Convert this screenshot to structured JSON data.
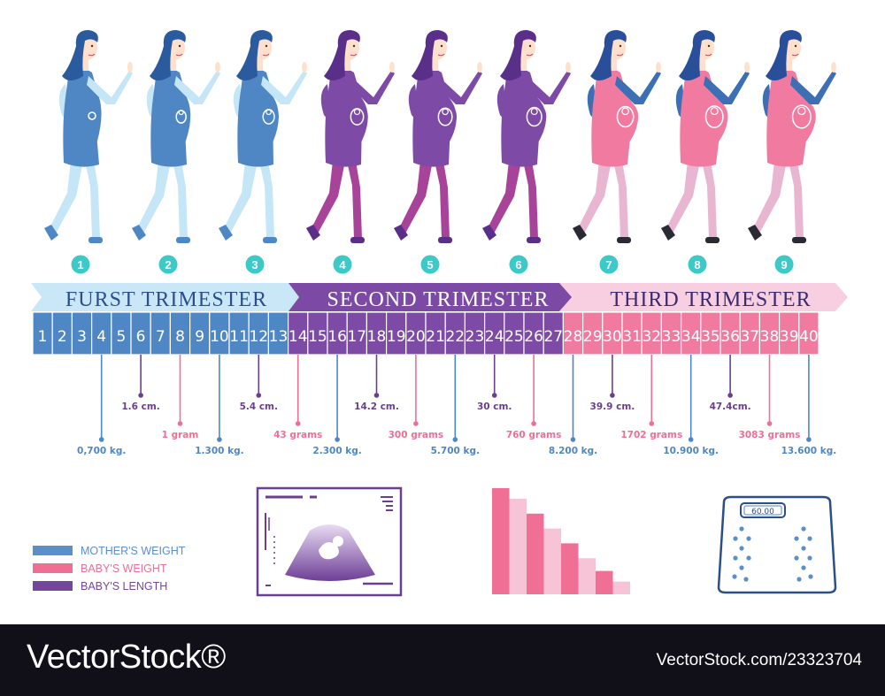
{
  "trimesters": [
    {
      "label": "FURST TRIMESTER",
      "color": "#5b86c4"
    },
    {
      "label": "SECOND TRIMESTER",
      "color": "#73489e"
    },
    {
      "label": "THIRD TRIMESTER",
      "color": "#ee6e94"
    }
  ],
  "month_badges": [
    "1",
    "2",
    "3",
    "4",
    "5",
    "6",
    "7",
    "8",
    "9"
  ],
  "weeks": [
    "1",
    "2",
    "3",
    "4",
    "5",
    "6",
    "7",
    "8",
    "9",
    "10",
    "11",
    "12",
    "13",
    "14",
    "15",
    "16",
    "17",
    "18",
    "19",
    "20",
    "21",
    "22",
    "23",
    "24",
    "25",
    "26",
    "27",
    "28",
    "29",
    "30",
    "31",
    "32",
    "33",
    "34",
    "35",
    "36",
    "37",
    "38",
    "39",
    "40"
  ],
  "markers": [
    {
      "week": 4,
      "type": "mother",
      "label": "0,700 kg."
    },
    {
      "week": 6,
      "type": "length",
      "label": "1.6 cm."
    },
    {
      "week": 8,
      "type": "baby",
      "label": "1 gram"
    },
    {
      "week": 10,
      "type": "mother",
      "label": "1.300 kg."
    },
    {
      "week": 12,
      "type": "length",
      "label": "5.4 cm."
    },
    {
      "week": 14,
      "type": "baby",
      "label": "43 grams"
    },
    {
      "week": 16,
      "type": "mother",
      "label": "2.300 kg."
    },
    {
      "week": 18,
      "type": "length",
      "label": "14.2 cm."
    },
    {
      "week": 20,
      "type": "baby",
      "label": "300 grams"
    },
    {
      "week": 22,
      "type": "mother",
      "label": "5.700 kg."
    },
    {
      "week": 24,
      "type": "length",
      "label": "30 cm."
    },
    {
      "week": 26,
      "type": "baby",
      "label": "760 grams"
    },
    {
      "week": 28,
      "type": "mother",
      "label": "8.200 kg."
    },
    {
      "week": 30,
      "type": "length",
      "label": "39.9 cm."
    },
    {
      "week": 32,
      "type": "baby",
      "label": "1702 grams"
    },
    {
      "week": 34,
      "type": "mother",
      "label": "10.900 kg."
    },
    {
      "week": 36,
      "type": "length",
      "label": "47.4cm."
    },
    {
      "week": 38,
      "type": "baby",
      "label": "3083 grams"
    },
    {
      "week": 40,
      "type": "mother",
      "label": "13.600 kg."
    }
  ],
  "legend": [
    {
      "key": "mother",
      "label": "MOTHER'S WEIGHT",
      "color": "#5b8fc9"
    },
    {
      "key": "baby",
      "label": "BABY'S WEIGHT",
      "color": "#ee6e94"
    },
    {
      "key": "length",
      "label": "BABY'S LENGTH",
      "color": "#74479c"
    }
  ],
  "colors": {
    "mother": "#4f87c4",
    "baby": "#ee6e94",
    "length": "#6b3f8f",
    "badge": "#3ec9c9",
    "first_light": "#c4e6f6",
    "second_bar": "#7d4aa6",
    "third_bar": "#f07aa0"
  },
  "bar_chart": {
    "values": [
      10,
      9,
      7.6,
      6.2,
      4.8,
      3.4,
      2.2,
      1.2
    ],
    "colors": [
      "#ef6f95",
      "#f6c4d6",
      "#ef6f95",
      "#f6c4d6",
      "#ef6f95",
      "#f6c4d6",
      "#ef6f95",
      "#f6c4d6"
    ]
  },
  "scale": {
    "display": "60.00"
  },
  "footer": {
    "left": "VectorStock®",
    "right": "VectorStock.com/23323704"
  }
}
